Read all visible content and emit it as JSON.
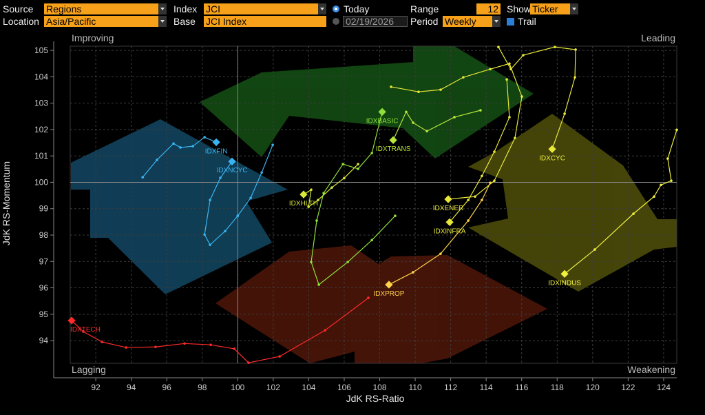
{
  "controls": {
    "source_label": "Source",
    "source": "Regions",
    "location_label": "Location",
    "location": "Asia/Pacific",
    "index_label": "Index",
    "index": "JCI",
    "base_label": "Base",
    "base": "JCI Index",
    "today": "Today",
    "date": "02/19/2026",
    "range_label": "Range",
    "range": "12",
    "period_label": "Period",
    "period": "Weekly",
    "show_label": "Show",
    "show": "Ticker",
    "trail": "Trail"
  },
  "chart_data": {
    "type": "rrg",
    "x_label": "JdK RS-Ratio",
    "y_label": "JdK RS-Momentum",
    "quadrants": {
      "top_left": "Improving",
      "top_right": "Leading",
      "bottom_left": "Lagging",
      "bottom_right": "Weakening"
    },
    "center": 100,
    "xlim": [
      90.56,
      124.74
    ],
    "ylim": [
      93.14,
      105.16
    ],
    "xticks": [
      92,
      94,
      96,
      98,
      100,
      102,
      104,
      106,
      108,
      110,
      112,
      114,
      116,
      118,
      120,
      122,
      124
    ],
    "yticks": [
      94,
      95,
      96,
      97,
      98,
      99,
      100,
      101,
      102,
      103,
      104,
      105
    ],
    "grid": true,
    "series": [
      {
        "name": "IDXTECH",
        "color": "#ff2a2a",
        "x": [
          107.36,
          104.92,
          102.36,
          100.61,
          99.8,
          98.48,
          97.0,
          95.37,
          93.71,
          92.35,
          91.3,
          90.64
        ],
        "y": [
          95.62,
          94.39,
          93.4,
          93.16,
          93.69,
          93.84,
          93.89,
          93.76,
          93.74,
          93.95,
          94.34,
          94.76
        ]
      },
      {
        "name": "IDXPROP",
        "color": "#ffd24a",
        "x": [
          114.23,
          113.76,
          112.99,
          111.43,
          109.88,
          108.52
        ],
        "y": [
          99.98,
          99.33,
          98.55,
          97.29,
          96.59,
          96.12
        ]
      },
      {
        "name": "IDXINDUS",
        "color": "#f0f040",
        "x": [
          124.74,
          124.23,
          124.43,
          123.85,
          123.46,
          122.3,
          120.12,
          118.42
        ],
        "y": [
          101.99,
          100.9,
          100.06,
          99.9,
          99.46,
          98.81,
          97.45,
          96.53
        ]
      },
      {
        "name": "IDXCYC",
        "color": "#e8e83a",
        "x": [
          114.69,
          115.39,
          116.09,
          117.87,
          119.04,
          119.0,
          118.42,
          117.72
        ],
        "y": [
          105.13,
          104.29,
          104.82,
          105.13,
          105.03,
          103.98,
          102.6,
          101.26
        ]
      },
      {
        "name": "IDXINFRA",
        "color": "#e8e83a",
        "x": [
          115.16,
          115.31,
          114.46,
          113.76,
          112.99,
          111.94
        ],
        "y": [
          103.9,
          102.47,
          101.16,
          100.24,
          99.33,
          98.49
        ]
      },
      {
        "name": "IDXENER",
        "color": "#e8e83a",
        "x": [
          108.64,
          110.19,
          111.43,
          112.71,
          114.23,
          115.31,
          116.01,
          115.62,
          114.46,
          113.37,
          111.86
        ],
        "y": [
          103.62,
          103.43,
          103.51,
          103.98,
          104.29,
          104.5,
          103.25,
          101.68,
          100.06,
          99.46,
          99.36
        ]
      },
      {
        "name": "IDXTRANS",
        "color": "#b8e63a",
        "x": [
          113.68,
          112.21,
          110.66,
          109.88,
          109.49,
          108.76
        ],
        "y": [
          102.73,
          102.47,
          101.94,
          102.26,
          102.67,
          101.6
        ]
      },
      {
        "name": "IDXBASIC",
        "color": "#8fe03a",
        "x": [
          108.87,
          107.56,
          106.2,
          104.57,
          104.14,
          104.45,
          104.84,
          105.93,
          106.78,
          107.56,
          108.14
        ],
        "y": [
          98.73,
          97.81,
          96.98,
          96.12,
          96.98,
          98.55,
          99.59,
          100.69,
          100.51,
          101.11,
          102.67
        ]
      },
      {
        "name": "IDXHLTH",
        "color": "#d8e63a",
        "x": [
          106.78,
          106.0,
          105.3,
          104.53,
          103.99,
          104.14,
          103.71
        ],
        "y": [
          100.69,
          100.16,
          99.8,
          99.33,
          99.07,
          99.72,
          99.54
        ]
      },
      {
        "name": "IDXFIN",
        "color": "#3ab4f0",
        "x": [
          94.64,
          95.45,
          96.38,
          96.77,
          97.47,
          98.13,
          98.79
        ],
        "y": [
          100.19,
          100.85,
          101.47,
          101.32,
          101.37,
          101.71,
          101.52
        ]
      },
      {
        "name": "IDXNCYC",
        "color": "#3ab4f0",
        "x": [
          101.97,
          101.35,
          100.73,
          100.0,
          99.29,
          98.44,
          98.13,
          98.44,
          99.02,
          99.68
        ],
        "y": [
          101.42,
          100.37,
          99.41,
          98.73,
          98.15,
          97.63,
          98.02,
          99.33,
          100.17,
          100.79
        ]
      }
    ]
  }
}
